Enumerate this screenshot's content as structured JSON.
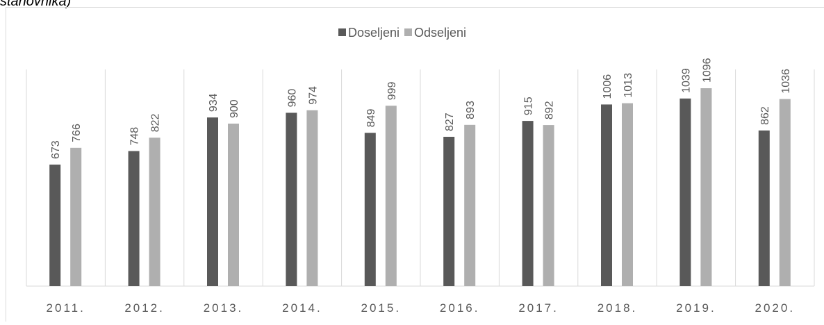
{
  "caption": "stanovnika)",
  "chart_data": {
    "type": "bar",
    "categories": [
      "2011.",
      "2012.",
      "2013.",
      "2014.",
      "2015.",
      "2016.",
      "2017.",
      "2018.",
      "2019.",
      "2020."
    ],
    "series": [
      {
        "name": "Doseljeni",
        "color": "#595959",
        "values": [
          673,
          748,
          934,
          960,
          849,
          827,
          915,
          1006,
          1039,
          862
        ]
      },
      {
        "name": "Odseljeni",
        "color": "#afafaf",
        "values": [
          766,
          822,
          900,
          974,
          999,
          893,
          892,
          1013,
          1096,
          1036
        ]
      }
    ],
    "ylim": [
      0,
      1200
    ],
    "legend": "top"
  }
}
